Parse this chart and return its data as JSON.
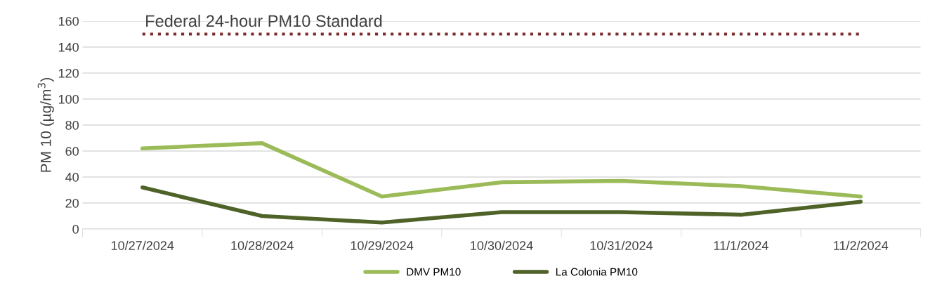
{
  "chart_data": {
    "type": "line",
    "ylabel": "PM 10 (µg/m$^{3}$)",
    "categories": [
      "10/27/2024",
      "10/28/2024",
      "10/29/2024",
      "10/30/2024",
      "10/31/2024",
      "11/1/2024",
      "11/2/2024"
    ],
    "series": [
      {
        "name": "DMV PM10",
        "color": "#9bbb59",
        "values": [
          62,
          66,
          25,
          36,
          37,
          33,
          25
        ]
      },
      {
        "name": "La Colonia PM10",
        "color": "#4f6228",
        "values": [
          32,
          10,
          5,
          13,
          13,
          11,
          21
        ]
      }
    ],
    "ylim": [
      0,
      160
    ],
    "yticks": [
      0,
      20,
      40,
      60,
      80,
      100,
      120,
      140,
      160
    ],
    "ref_lines": [
      {
        "axis": "y",
        "value": 150,
        "label": "Federal 24-hour PM10 Standard",
        "color": "#7b2c2c",
        "line_style": "dotted"
      }
    ],
    "grid": "y",
    "legend": "bottom",
    "marker": "none",
    "line_style": "solid"
  }
}
